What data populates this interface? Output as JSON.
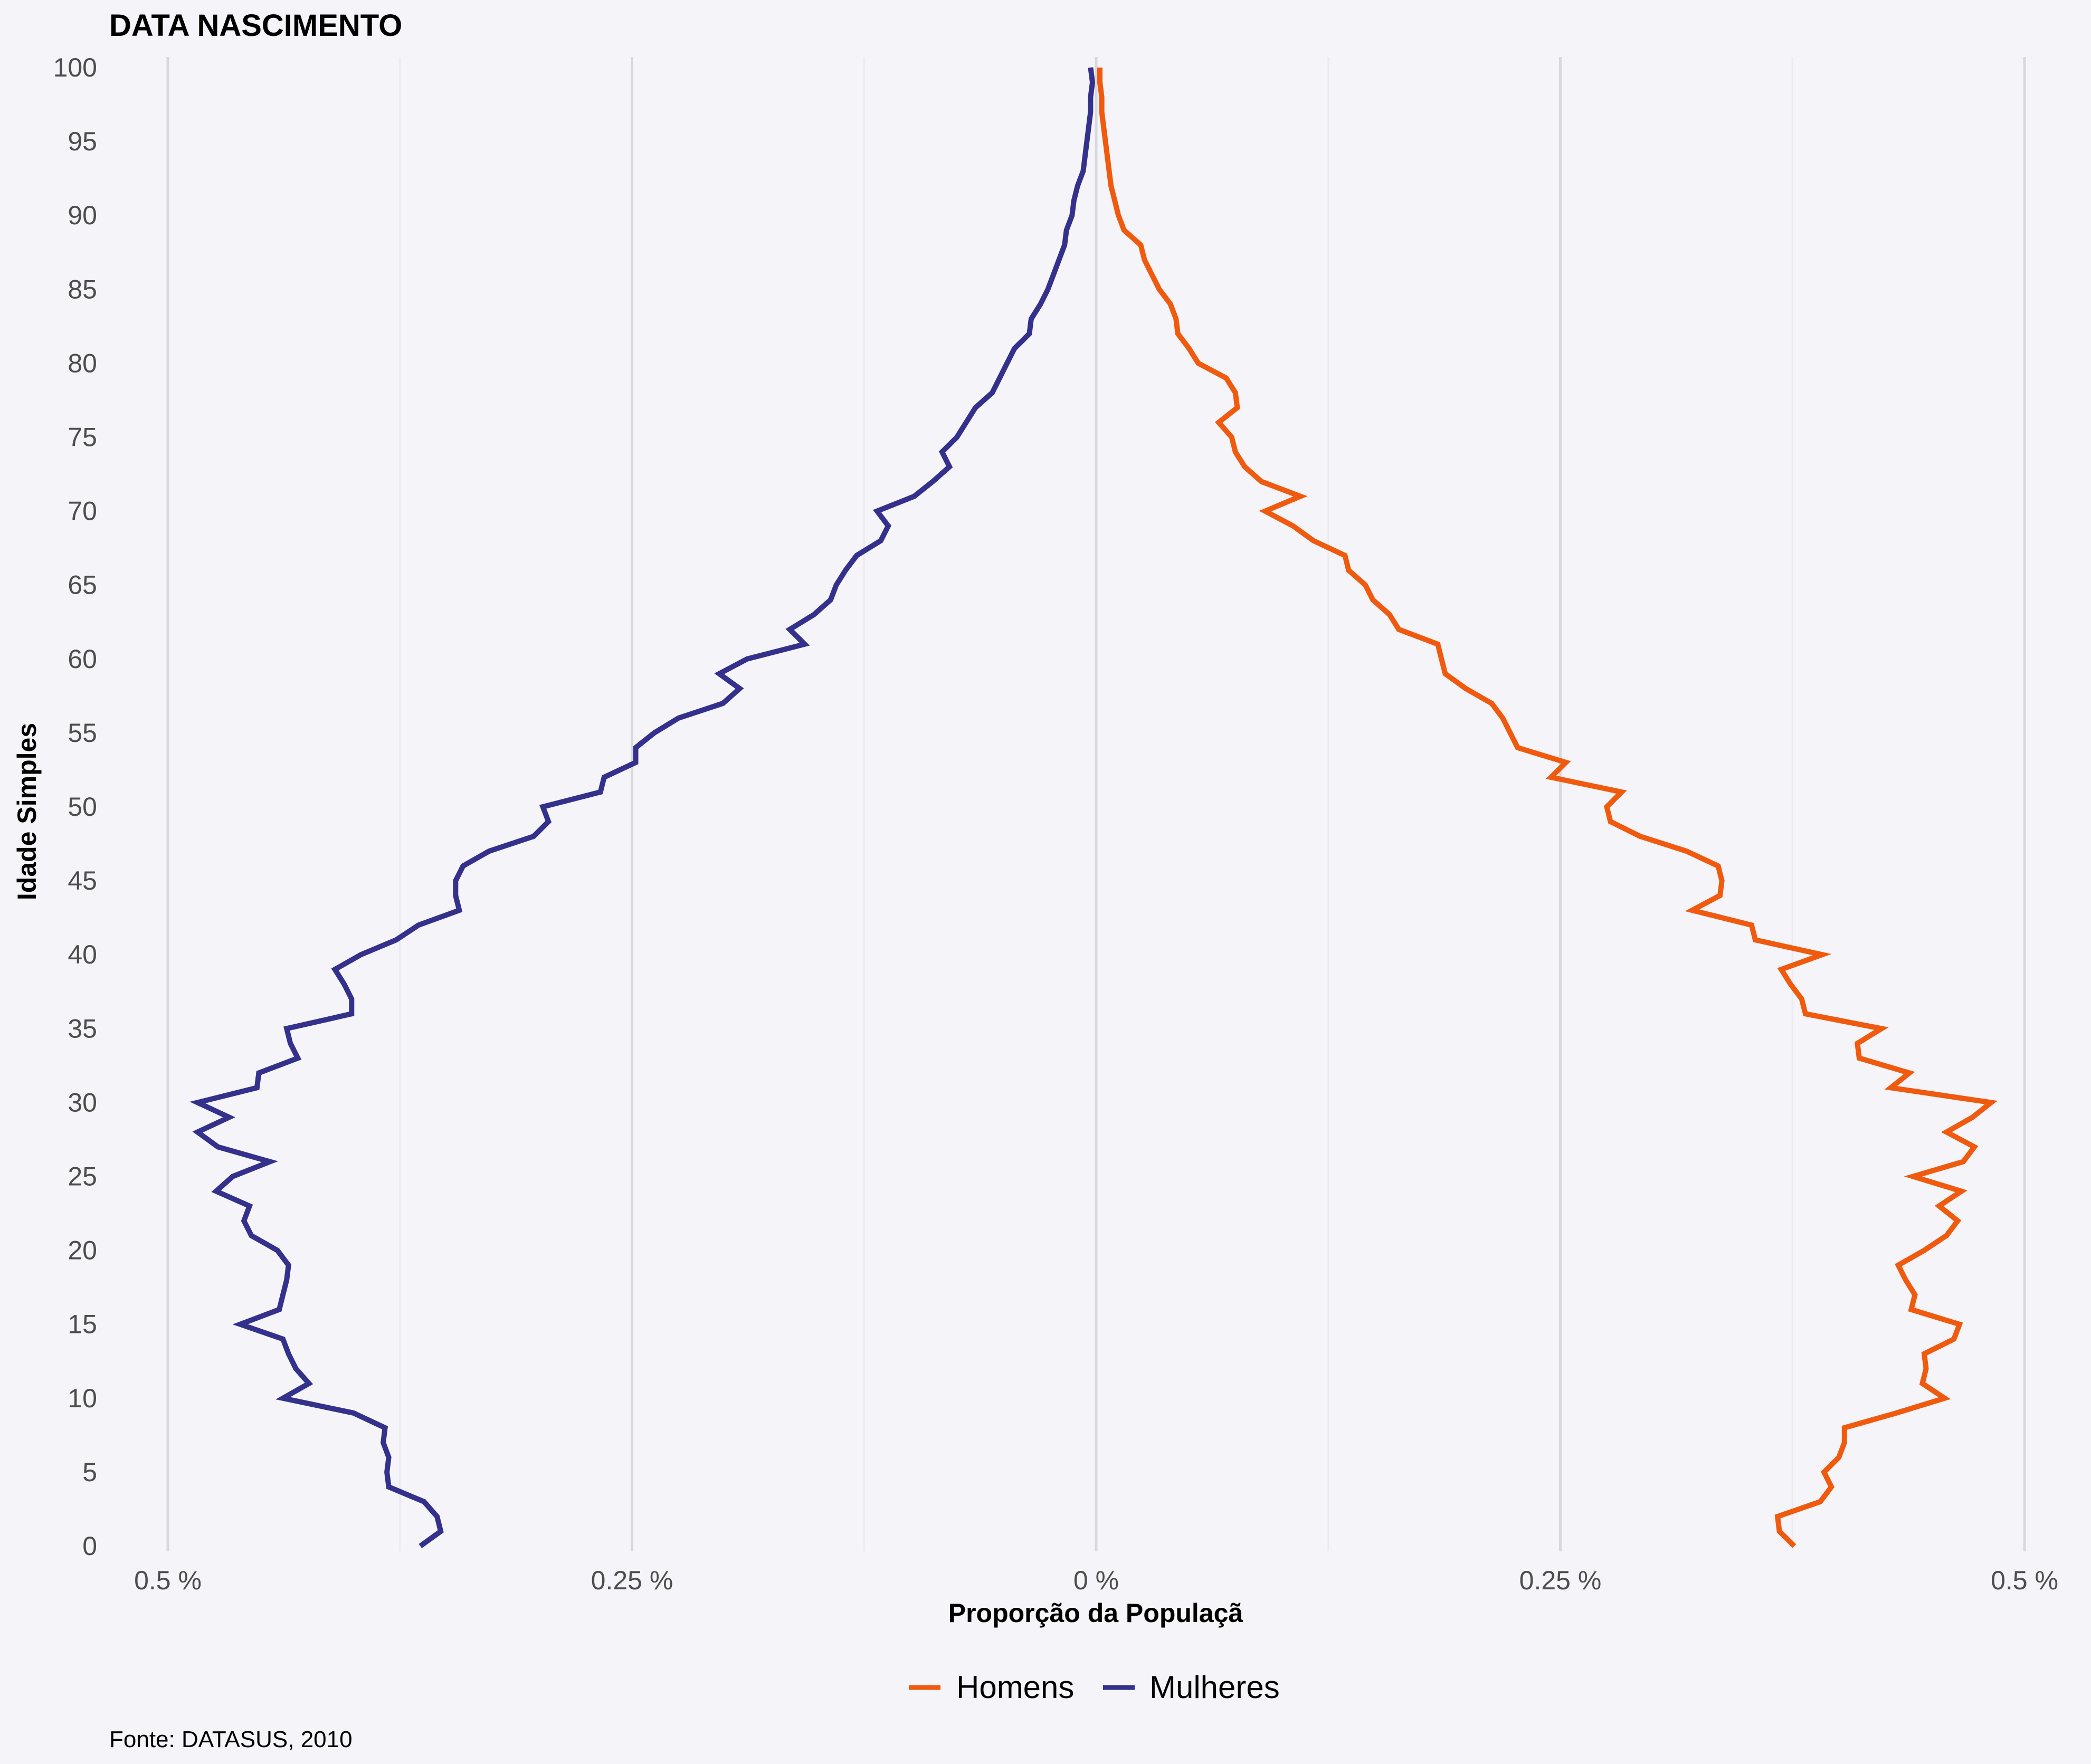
{
  "chart_data": {
    "type": "line",
    "title": "DATA NASCIMENTO",
    "xlabel": "Proporção da Populaçã",
    "ylabel": "Idade Simples",
    "caption": "Fonte: DATASUS, 2010",
    "xlim": [
      -0.5,
      0.5
    ],
    "ylim": [
      0,
      100
    ],
    "x_ticks": [
      -0.5,
      -0.25,
      0,
      0.25,
      0.5
    ],
    "x_tick_labels": [
      "0.5 %",
      "0.25 %",
      "0 %",
      "0.25 %",
      "0.5 %"
    ],
    "y_ticks": [
      0,
      5,
      10,
      15,
      20,
      25,
      30,
      35,
      40,
      45,
      50,
      55,
      60,
      65,
      70,
      75,
      80,
      85,
      90,
      95,
      100
    ],
    "y_tick_labels": [
      "0",
      "5",
      "10",
      "15",
      "20",
      "25",
      "30",
      "35",
      "40",
      "45",
      "50",
      "55",
      "60",
      "65",
      "70",
      "75",
      "80",
      "85",
      "90",
      "95",
      "100"
    ],
    "grid": true,
    "legend_position": "bottom",
    "legend": [
      "Homens",
      "Mulheres"
    ],
    "colors": {
      "Homens": "#f05a0e",
      "Mulheres": "#34318c"
    },
    "series": [
      {
        "name": "Homens",
        "color": "#f05a0e",
        "x": [
          0.376,
          0.368,
          0.367,
          0.39,
          0.396,
          0.392,
          0.4,
          0.403,
          0.403,
          0.431,
          0.457,
          0.445,
          0.447,
          0.446,
          0.462,
          0.465,
          0.439,
          0.441,
          0.436,
          0.432,
          0.446,
          0.458,
          0.464,
          0.454,
          0.466,
          0.44,
          0.467,
          0.473,
          0.458,
          0.472,
          0.482,
          0.428,
          0.438,
          0.411,
          0.41,
          0.423,
          0.382,
          0.38,
          0.374,
          0.369,
          0.391,
          0.355,
          0.353,
          0.321,
          0.336,
          0.337,
          0.335,
          0.318,
          0.293,
          0.277,
          0.275,
          0.283,
          0.245,
          0.253,
          0.227,
          0.223,
          0.219,
          0.213,
          0.199,
          0.188,
          0.186,
          0.184,
          0.163,
          0.158,
          0.149,
          0.145,
          0.136,
          0.134,
          0.117,
          0.106,
          0.091,
          0.11,
          0.089,
          0.08,
          0.075,
          0.073,
          0.066,
          0.076,
          0.075,
          0.07,
          0.055,
          0.05,
          0.044,
          0.043,
          0.04,
          0.034,
          0.03,
          0.026,
          0.024,
          0.015,
          0.012,
          0.01,
          0.008,
          0.007,
          0.006,
          0.005,
          0.004,
          0.003,
          0.003,
          0.002,
          0.002
        ]
      },
      {
        "name": "Mulheres",
        "color": "#34318c",
        "x": [
          -0.364,
          -0.353,
          -0.355,
          -0.362,
          -0.381,
          -0.382,
          -0.381,
          -0.384,
          -0.383,
          -0.4,
          -0.438,
          -0.424,
          -0.431,
          -0.435,
          -0.438,
          -0.461,
          -0.44,
          -0.438,
          -0.436,
          -0.435,
          -0.441,
          -0.455,
          -0.459,
          -0.456,
          -0.474,
          -0.465,
          -0.445,
          -0.473,
          -0.484,
          -0.467,
          -0.484,
          -0.452,
          -0.451,
          -0.43,
          -0.434,
          -0.436,
          -0.401,
          -0.401,
          -0.405,
          -0.41,
          -0.396,
          -0.377,
          -0.365,
          -0.343,
          -0.345,
          -0.345,
          -0.341,
          -0.327,
          -0.303,
          -0.295,
          -0.298,
          -0.267,
          -0.265,
          -0.248,
          -0.248,
          -0.238,
          -0.225,
          -0.201,
          -0.192,
          -0.203,
          -0.188,
          -0.157,
          -0.165,
          -0.152,
          -0.143,
          -0.14,
          -0.135,
          -0.129,
          -0.116,
          -0.112,
          -0.118,
          -0.098,
          -0.088,
          -0.079,
          -0.083,
          -0.075,
          -0.07,
          -0.065,
          -0.056,
          -0.052,
          -0.048,
          -0.044,
          -0.036,
          -0.035,
          -0.03,
          -0.026,
          -0.023,
          -0.02,
          -0.017,
          -0.016,
          -0.013,
          -0.012,
          -0.01,
          -0.007,
          -0.006,
          -0.005,
          -0.004,
          -0.003,
          -0.003,
          -0.002,
          -0.003
        ]
      }
    ]
  }
}
